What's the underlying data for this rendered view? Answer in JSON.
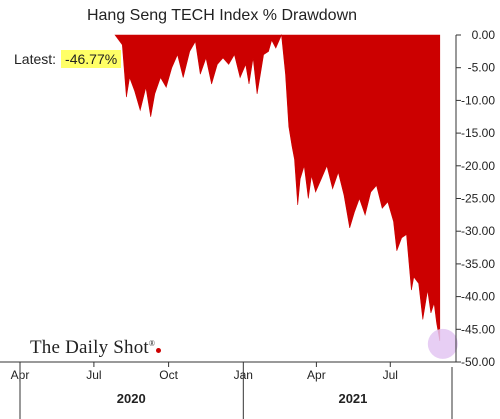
{
  "chart_data": {
    "type": "area",
    "title": "Hang Seng TECH Index % Drawdown",
    "y_ticks": [
      "0.00",
      "-5.00",
      "-10.00",
      "-15.00",
      "-20.00",
      "-25.00",
      "-30.00",
      "-35.00",
      "-40.00",
      "-45.00",
      "-50.00"
    ],
    "ylim": [
      -50,
      0
    ],
    "x_ticks": [
      "Apr",
      "Jul",
      "Oct",
      "Jan",
      "Apr",
      "Jul"
    ],
    "x_tick_dates": [
      "2020-04-01",
      "2020-07-01",
      "2020-10-01",
      "2021-01-01",
      "2021-04-01",
      "2021-07-01"
    ],
    "xlim": [
      "2020-04-01",
      "2021-09-15"
    ],
    "year_labels": [
      {
        "label": "2020",
        "date": "2020-08-16"
      },
      {
        "label": "2021",
        "date": "2021-05-16"
      }
    ],
    "series": [
      {
        "color": "#cc0000",
        "points": [
          [
            "2020-07-27",
            0
          ],
          [
            "2020-08-05",
            -1.5
          ],
          [
            "2020-08-10",
            -9.5
          ],
          [
            "2020-08-14",
            -6.5
          ],
          [
            "2020-08-20",
            -8.5
          ],
          [
            "2020-08-27",
            -11.5
          ],
          [
            "2020-09-03",
            -8.0
          ],
          [
            "2020-09-09",
            -12.5
          ],
          [
            "2020-09-14",
            -9.0
          ],
          [
            "2020-09-21",
            -6.5
          ],
          [
            "2020-09-28",
            -8.0
          ],
          [
            "2020-10-05",
            -5.0
          ],
          [
            "2020-10-12",
            -3.0
          ],
          [
            "2020-10-19",
            -6.5
          ],
          [
            "2020-10-27",
            -2.5
          ],
          [
            "2020-11-03",
            -1.0
          ],
          [
            "2020-11-09",
            -6.0
          ],
          [
            "2020-11-16",
            -3.5
          ],
          [
            "2020-11-23",
            -7.5
          ],
          [
            "2020-11-30",
            -4.5
          ],
          [
            "2020-12-07",
            -3.5
          ],
          [
            "2020-12-14",
            -4.5
          ],
          [
            "2020-12-21",
            -3.0
          ],
          [
            "2020-12-28",
            -6.5
          ],
          [
            "2021-01-04",
            -4.5
          ],
          [
            "2021-01-08",
            -7.5
          ],
          [
            "2021-01-13",
            -3.5
          ],
          [
            "2021-01-18",
            -9.0
          ],
          [
            "2021-01-22",
            -6.0
          ],
          [
            "2021-01-26",
            -3.0
          ],
          [
            "2021-02-01",
            -2.5
          ],
          [
            "2021-02-05",
            -0.8
          ],
          [
            "2021-02-10",
            -2.0
          ],
          [
            "2021-02-17",
            0
          ],
          [
            "2021-02-22",
            -6.0
          ],
          [
            "2021-02-26",
            -14.0
          ],
          [
            "2021-03-02",
            -17.0
          ],
          [
            "2021-03-05",
            -19.0
          ],
          [
            "2021-03-09",
            -26.0
          ],
          [
            "2021-03-12",
            -22.0
          ],
          [
            "2021-03-17",
            -20.0
          ],
          [
            "2021-03-22",
            -25.0
          ],
          [
            "2021-03-26",
            -21.5
          ],
          [
            "2021-03-31",
            -24.0
          ],
          [
            "2021-04-07",
            -22.0
          ],
          [
            "2021-04-14",
            -20.0
          ],
          [
            "2021-04-21",
            -23.5
          ],
          [
            "2021-04-28",
            -21.0
          ],
          [
            "2021-05-05",
            -24.5
          ],
          [
            "2021-05-12",
            -29.5
          ],
          [
            "2021-05-18",
            -27.0
          ],
          [
            "2021-05-24",
            -25.0
          ],
          [
            "2021-05-31",
            -27.5
          ],
          [
            "2021-06-07",
            -24.0
          ],
          [
            "2021-06-14",
            -23.0
          ],
          [
            "2021-06-21",
            -26.5
          ],
          [
            "2021-06-28",
            -25.5
          ],
          [
            "2021-07-05",
            -28.5
          ],
          [
            "2021-07-09",
            -33.0
          ],
          [
            "2021-07-15",
            -31.0
          ],
          [
            "2021-07-21",
            -30.5
          ],
          [
            "2021-07-27",
            -39.0
          ],
          [
            "2021-07-30",
            -37.0
          ],
          [
            "2021-08-05",
            -38.0
          ],
          [
            "2021-08-10",
            -43.5
          ],
          [
            "2021-08-16",
            -39.0
          ],
          [
            "2021-08-20",
            -42.5
          ],
          [
            "2021-08-24",
            -41.0
          ],
          [
            "2021-08-27",
            -44.0
          ],
          [
            "2021-08-31",
            -46.77
          ]
        ]
      }
    ],
    "annotation": {
      "label": "Latest:",
      "value": "-46.77%"
    },
    "highlight": {
      "date": "2021-08-31",
      "value": -46.77,
      "color": "#e3c6f2"
    },
    "grid": false
  },
  "branding": {
    "text": "The Daily Shot",
    "mark": "®"
  }
}
